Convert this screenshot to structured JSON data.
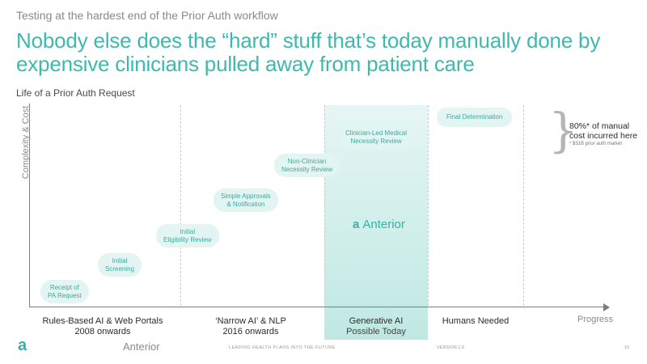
{
  "header": {
    "eyebrow": "Testing at the hardest end of the Prior Auth workflow",
    "headline": "Nobody else does the “hard” stuff that’s today manually done by expensive clinicians pulled away from patient care",
    "subhead": "Life of a Prior Auth Request"
  },
  "axes": {
    "y_label": "Complexity & Cost",
    "x_label": "Progress"
  },
  "steps": [
    {
      "line1": "Receipt of",
      "line2": "PA Request"
    },
    {
      "line1": "Initial",
      "line2": "Screening"
    },
    {
      "line1": "Initial",
      "line2": "Eligibility Review"
    },
    {
      "line1": "Simple Approvals",
      "line2": "& Notification"
    },
    {
      "line1": "Non-Clinician",
      "line2": "Necessity Review"
    },
    {
      "line1": "Clinician-Led Medical",
      "line2": "Necessity Review"
    },
    {
      "line1": "Final Determination",
      "line2": ""
    }
  ],
  "brand": {
    "mark": "a",
    "name": "Anterior",
    "color": "#31b2a6"
  },
  "callout": {
    "main": "80%* of manual cost incurred here",
    "footnote": "* $31B prior auth market"
  },
  "eras": [
    {
      "title": "Rules-Based AI & Web Portals",
      "subtitle": "2008 onwards"
    },
    {
      "title": "‘Narrow AI’ & NLP",
      "subtitle": "2016 onwards"
    },
    {
      "title": "Generative AI",
      "subtitle": "Possible Today"
    },
    {
      "title": "Humans Needed",
      "subtitle": ""
    }
  ],
  "footer": {
    "logo_mark": "a",
    "logo_word": "Anterior",
    "tagline": "LEADING HEALTH PLANS INTO THE FUTURE",
    "version": "VERSION 1.0",
    "page": "10"
  },
  "colors": {
    "accent": "#3fb8ad",
    "pill_bg": "#e3f5f2",
    "band_bg": "#d4efec"
  }
}
